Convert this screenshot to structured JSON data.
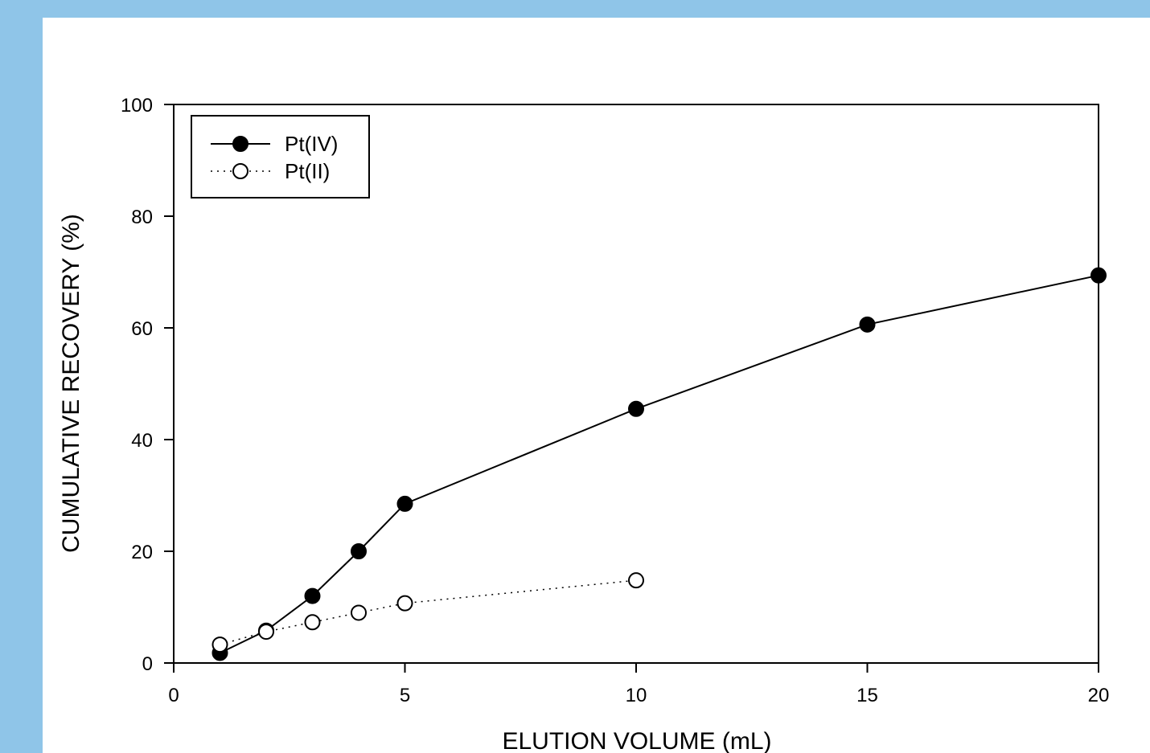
{
  "background": {
    "frame_color": "#8fc5e8",
    "panel_color": "#ffffff"
  },
  "chart_data": {
    "type": "line",
    "title": "",
    "xlabel": "ELUTION VOLUME (mL)",
    "ylabel": "CUMULATIVE RECOVERY (%)",
    "xlim": [
      0,
      20
    ],
    "ylim": [
      0,
      100
    ],
    "xticks": [
      0,
      5,
      10,
      15,
      20
    ],
    "yticks": [
      0,
      20,
      40,
      60,
      80,
      100
    ],
    "grid": false,
    "legend_position": "top-left",
    "series": [
      {
        "name": "Pt(IV)",
        "marker": "filled-circle",
        "line_style": "solid",
        "color": "#000000",
        "x": [
          1,
          2,
          3,
          4,
          5,
          10,
          15,
          20
        ],
        "y": [
          1.8,
          5.8,
          12.0,
          20.0,
          28.5,
          45.5,
          60.6,
          69.4
        ]
      },
      {
        "name": "Pt(II)",
        "marker": "open-circle",
        "line_style": "dotted",
        "color": "#000000",
        "x": [
          1,
          2,
          3,
          4,
          5,
          10
        ],
        "y": [
          3.3,
          5.6,
          7.3,
          9.0,
          10.7,
          14.8
        ]
      }
    ]
  }
}
